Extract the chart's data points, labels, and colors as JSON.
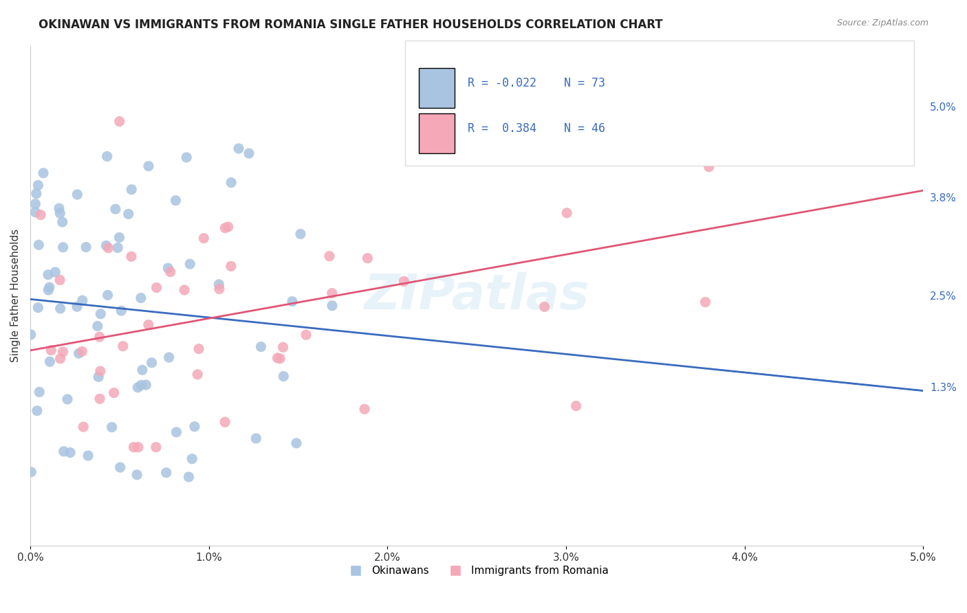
{
  "title": "OKINAWAN VS IMMIGRANTS FROM ROMANIA SINGLE FATHER HOUSEHOLDS CORRELATION CHART",
  "source": "Source: ZipAtlas.com",
  "ylabel": "Single Father Households",
  "right_yticks": [
    "5.0%",
    "3.8%",
    "2.5%",
    "1.3%"
  ],
  "right_ytick_vals": [
    0.05,
    0.038,
    0.025,
    0.013
  ],
  "xmin": 0.0,
  "xmax": 0.05,
  "ymin": -0.008,
  "ymax": 0.058,
  "okinawan_color": "#a8c4e0",
  "romania_color": "#f4a8b8",
  "okinawan_line_color": "#3a6bbf",
  "romania_line_color": "#e05575",
  "okinawan_R": -0.022,
  "okinawan_N": 73,
  "romania_R": 0.384,
  "romania_N": 46,
  "watermark": "ZIPatlas",
  "legend_label_1": "Okinawans",
  "legend_label_2": "Immigrants from Romania",
  "grid_color": "#cccccc",
  "background_color": "#ffffff"
}
